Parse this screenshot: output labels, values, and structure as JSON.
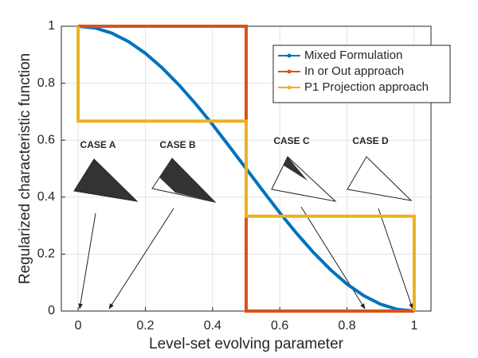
{
  "chart_data": {
    "type": "line",
    "xlabel": "Level-set evolving parameter",
    "ylabel": "Regularized characteristic function",
    "xlim": [
      -0.05,
      1.05
    ],
    "ylim": [
      0,
      1
    ],
    "xticks": [
      0,
      0.2,
      0.4,
      0.6,
      0.8,
      1
    ],
    "yticks": [
      0,
      0.2,
      0.4,
      0.6,
      0.8,
      1
    ],
    "grid": true,
    "legend": "upper right",
    "series": [
      {
        "name": "Mixed Formulation",
        "color": "#0072bd",
        "x": [
          0,
          0.05,
          0.1,
          0.15,
          0.2,
          0.25,
          0.3,
          0.35,
          0.4,
          0.45,
          0.5,
          0.55,
          0.6,
          0.65,
          0.7,
          0.75,
          0.8,
          0.85,
          0.9,
          0.95,
          1
        ],
        "values": [
          1,
          0.994,
          0.976,
          0.946,
          0.905,
          0.854,
          0.794,
          0.727,
          0.655,
          0.578,
          0.5,
          0.422,
          0.345,
          0.273,
          0.206,
          0.146,
          0.095,
          0.054,
          0.024,
          0.006,
          0
        ]
      },
      {
        "name": "In or Out approach",
        "color": "#d95319",
        "x": [
          0,
          0.5,
          0.5,
          1
        ],
        "values": [
          1,
          1,
          0,
          0
        ]
      },
      {
        "name": "P1 Projection approach",
        "color": "#edb120",
        "x": [
          0,
          0,
          0.5,
          0.5,
          1,
          1
        ],
        "values": [
          1,
          0.667,
          0.667,
          0.333,
          0.333,
          0
        ]
      }
    ],
    "annotations": [
      "CASE A",
      "CASE B",
      "CASE C",
      "CASE D"
    ]
  }
}
